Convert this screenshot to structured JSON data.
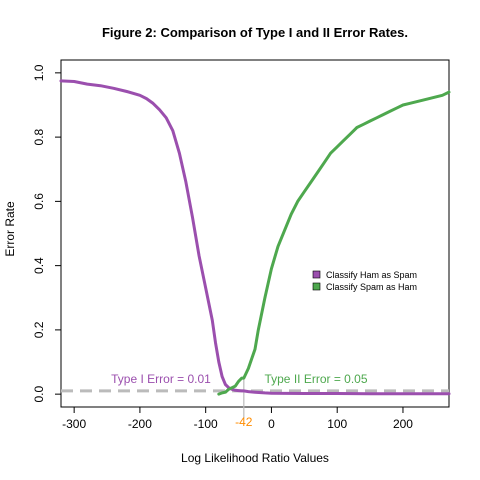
{
  "chart_data": {
    "type": "line",
    "title": "Figure 2: Comparison of Type I and II Error Rates.",
    "xlabel": "Log Likelihood Ratio Values",
    "ylabel": "Error Rate",
    "xlim": [
      -320,
      270
    ],
    "ylim": [
      -0.04,
      1.04
    ],
    "xticks": [
      -300,
      -200,
      -100,
      0,
      100,
      200
    ],
    "yticks": [
      0.0,
      0.2,
      0.4,
      0.6,
      0.8,
      1.0
    ],
    "xtick_labels": [
      "-300",
      "-200",
      "-100",
      "0",
      "100",
      "200"
    ],
    "ytick_labels": [
      "0.0",
      "0.2",
      "0.4",
      "0.6",
      "0.8",
      "1.0"
    ],
    "grid": false,
    "legend_position": "right",
    "series": [
      {
        "name": "Classify Ham as Spam",
        "color": "#9b4fae",
        "x": [
          -320,
          -300,
          -280,
          -260,
          -240,
          -220,
          -200,
          -190,
          -180,
          -170,
          -160,
          -150,
          -140,
          -130,
          -120,
          -110,
          -100,
          -95,
          -90,
          -85,
          -80,
          -75,
          -70,
          -65,
          -60,
          -55,
          -50,
          -45,
          -42,
          -35,
          -25,
          -10,
          0,
          50,
          100,
          150,
          200,
          270
        ],
        "y": [
          0.975,
          0.973,
          0.965,
          0.96,
          0.952,
          0.942,
          0.93,
          0.92,
          0.905,
          0.885,
          0.86,
          0.82,
          0.75,
          0.66,
          0.55,
          0.43,
          0.33,
          0.28,
          0.23,
          0.16,
          0.1,
          0.055,
          0.03,
          0.02,
          0.015,
          0.012,
          0.011,
          0.01,
          0.01,
          0.008,
          0.006,
          0.004,
          0.003,
          0.002,
          0.002,
          0.001,
          0.001,
          0.001
        ]
      },
      {
        "name": "Classify Spam as Ham",
        "color": "#4ea84e",
        "x": [
          -80,
          -75,
          -70,
          -65,
          -60,
          -55,
          -50,
          -45,
          -42,
          -35,
          -30,
          -25,
          -20,
          -10,
          0,
          10,
          20,
          30,
          40,
          50,
          60,
          70,
          80,
          90,
          100,
          110,
          120,
          130,
          140,
          150,
          160,
          170,
          180,
          190,
          200,
          210,
          220,
          230,
          240,
          250,
          260,
          270
        ],
        "y": [
          0.0,
          0.004,
          0.006,
          0.015,
          0.02,
          0.025,
          0.04,
          0.05,
          0.05,
          0.08,
          0.11,
          0.14,
          0.2,
          0.3,
          0.39,
          0.46,
          0.51,
          0.56,
          0.6,
          0.63,
          0.66,
          0.69,
          0.72,
          0.75,
          0.77,
          0.79,
          0.81,
          0.83,
          0.84,
          0.85,
          0.86,
          0.87,
          0.88,
          0.89,
          0.9,
          0.905,
          0.91,
          0.915,
          0.92,
          0.925,
          0.93,
          0.94
        ]
      }
    ],
    "annotations": {
      "type1_label": "Type I Error = 0.01",
      "type1_color": "#9b4fae",
      "type2_label": "Type II Error =  0.05",
      "type2_color": "#4ea84e",
      "threshold_label": "-42",
      "threshold_color": "#ff8c00",
      "threshold_x": -42,
      "reference_y": 0.01,
      "reference_color": "#bbbbbb"
    }
  }
}
